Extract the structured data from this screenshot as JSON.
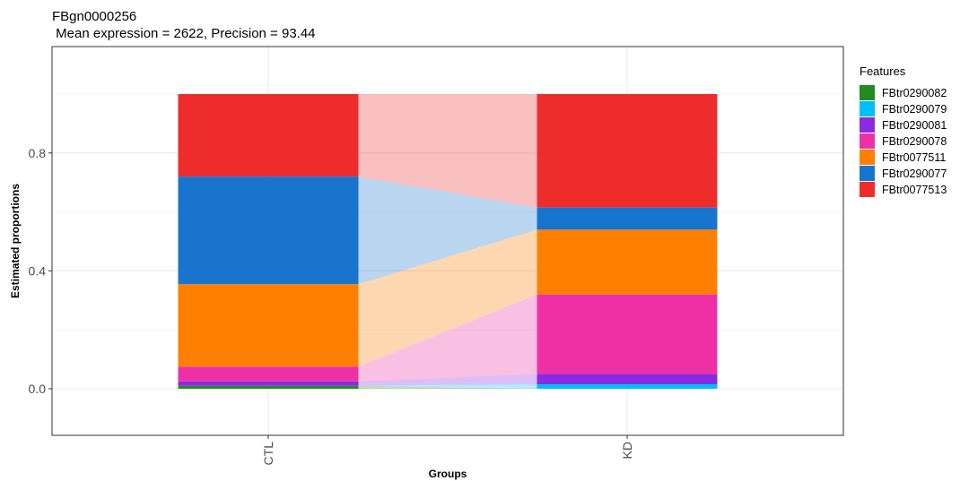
{
  "chart_data": {
    "type": "bar",
    "title": "FBgn0000256",
    "subtitle": " Mean expression = 2622, Precision = 93.44",
    "xlabel": "Groups",
    "ylabel": "Estimated proportions",
    "categories": [
      "CTL",
      "KD"
    ],
    "ylim": [
      -0.17,
      1.08
    ],
    "y_ticks": [
      0.0,
      0.4,
      0.8
    ],
    "y_tick_labels": [
      "0.0",
      "0.4",
      "0.8"
    ],
    "grid": true,
    "legend": {
      "title": "Features",
      "position": "right"
    },
    "series": [
      {
        "name": "FBtr0290082",
        "color": "#228B22",
        "values": [
          0.01,
          0.0
        ]
      },
      {
        "name": "FBtr0290079",
        "color": "#00BFFF",
        "values": [
          0.0,
          0.015
        ]
      },
      {
        "name": "FBtr0290081",
        "color": "#8A2BE2",
        "values": [
          0.015,
          0.035
        ]
      },
      {
        "name": "FBtr0290078",
        "color": "#EE30A7",
        "values": [
          0.05,
          0.27
        ]
      },
      {
        "name": "FBtr0077511",
        "color": "#FF7F00",
        "values": [
          0.28,
          0.22
        ]
      },
      {
        "name": "FBtr0290077",
        "color": "#1874CD",
        "values": [
          0.365,
          0.075
        ]
      },
      {
        "name": "FBtr0077513",
        "color": "#EE2C2C",
        "values": [
          0.28,
          0.385
        ]
      }
    ]
  }
}
